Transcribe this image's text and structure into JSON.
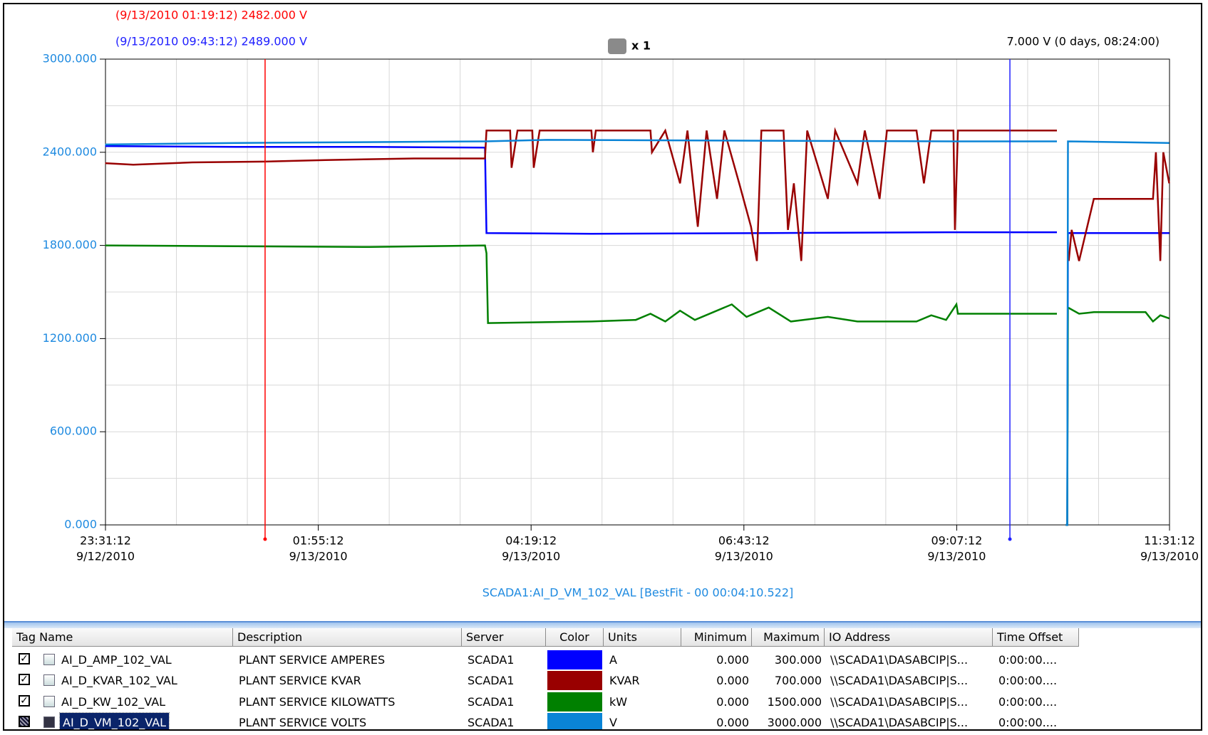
{
  "chart_data": {
    "type": "line",
    "cursors": [
      {
        "x": "2010-09-13T01:19:12",
        "color": "#ff0000",
        "label": "(9/13/2010 01:19:12) 2482.000 V"
      },
      {
        "x": "2010-09-13T09:43:12",
        "color": "#2020ff",
        "label": "(9/13/2010 09:43:12) 2489.000 V"
      }
    ],
    "cursor_delta": "7.000 V (0 days, 08:24:00)",
    "zoom_label": "x 1",
    "footer": "SCADA1:AI_D_VM_102_VAL [BestFit - 00 00:04:10.522]",
    "xlim": [
      "2010-09-12T23:31:12",
      "2010-09-13T11:31:12"
    ],
    "xticks": [
      {
        "value": "2010-09-12T23:31:12",
        "label": [
          "23:31:12",
          "9/12/2010"
        ]
      },
      {
        "value": "2010-09-13T01:55:12",
        "label": [
          "01:55:12",
          "9/13/2010"
        ]
      },
      {
        "value": "2010-09-13T04:19:12",
        "label": [
          "04:19:12",
          "9/13/2010"
        ]
      },
      {
        "value": "2010-09-13T06:43:12",
        "label": [
          "06:43:12",
          "9/13/2010"
        ]
      },
      {
        "value": "2010-09-13T09:07:12",
        "label": [
          "09:07:12",
          "9/13/2010"
        ]
      },
      {
        "value": "2010-09-13T11:31:12",
        "label": [
          "11:31:12",
          "9/13/2010"
        ]
      }
    ],
    "minor_xticks": [
      "2010-09-13T00:19:12",
      "2010-09-13T01:07:12",
      "2010-09-13T02:43:12",
      "2010-09-13T03:31:12",
      "2010-09-13T05:07:12",
      "2010-09-13T05:55:12",
      "2010-09-13T07:31:12",
      "2010-09-13T08:19:12",
      "2010-09-13T09:55:12",
      "2010-09-13T10:43:12"
    ],
    "ylim": [
      0,
      3000
    ],
    "yticks": [
      {
        "value": 0,
        "label": "0.000"
      },
      {
        "value": 600,
        "label": "600.000"
      },
      {
        "value": 1200,
        "label": "1200.000"
      },
      {
        "value": 1800,
        "label": "1800.000"
      },
      {
        "value": 2400,
        "label": "2400.000"
      },
      {
        "value": 3000,
        "label": "3000.000"
      }
    ],
    "minor_yticks": [
      300,
      900,
      1500,
      2100,
      2700
    ],
    "grid": true,
    "series": [
      {
        "color": "#0000ff",
        "x": [
          "2010-09-12T23:31:00",
          "2010-09-13T01:00:00",
          "2010-09-13T02:30:00",
          "2010-09-13T03:48:00",
          "2010-09-13T03:49:00",
          "2010-09-13T05:00:00",
          "2010-09-13T07:00:00",
          "2010-09-13T09:00:00",
          "2010-09-13T10:15:00",
          "2010-09-13T10:18:00",
          "2010-09-13T10:21:00",
          "2010-09-13T10:22:00",
          "2010-09-13T10:22:30",
          "2010-09-13T11:31:00"
        ],
        "values": [
          2440,
          2435,
          2435,
          2430,
          1880,
          1875,
          1880,
          1885,
          1885,
          null,
          0,
          0,
          1880,
          1880
        ]
      },
      {
        "color": "#990000",
        "x": [
          "2010-09-12T23:31:00",
          "2010-09-12T23:50:00",
          "2010-09-13T00:30:00",
          "2010-09-13T01:19:00",
          "2010-09-13T02:00:00",
          "2010-09-13T03:00:00",
          "2010-09-13T03:48:00",
          "2010-09-13T03:49:00",
          "2010-09-13T04:05:00",
          "2010-09-13T04:06:00",
          "2010-09-13T04:10:00",
          "2010-09-13T04:20:00",
          "2010-09-13T04:21:00",
          "2010-09-13T04:25:00",
          "2010-09-13T05:00:00",
          "2010-09-13T05:01:00",
          "2010-09-13T05:03:00",
          "2010-09-13T05:40:00",
          "2010-09-13T05:41:00",
          "2010-09-13T05:50:00",
          "2010-09-13T06:00:00",
          "2010-09-13T06:05:00",
          "2010-09-13T06:12:00",
          "2010-09-13T06:18:00",
          "2010-09-13T06:25:00",
          "2010-09-13T06:30:00",
          "2010-09-13T06:40:00",
          "2010-09-13T06:48:00",
          "2010-09-13T06:52:00",
          "2010-09-13T06:55:00",
          "2010-09-13T07:10:00",
          "2010-09-13T07:13:00",
          "2010-09-13T07:17:00",
          "2010-09-13T07:22:00",
          "2010-09-13T07:26:00",
          "2010-09-13T07:40:00",
          "2010-09-13T07:45:00",
          "2010-09-13T08:00:00",
          "2010-09-13T08:05:00",
          "2010-09-13T08:15:00",
          "2010-09-13T08:20:00",
          "2010-09-13T08:40:00",
          "2010-09-13T08:45:00",
          "2010-09-13T08:50:00",
          "2010-09-13T09:05:00",
          "2010-09-13T09:06:00",
          "2010-09-13T09:08:00",
          "2010-09-13T10:15:00",
          "2010-09-13T10:18:00",
          "2010-09-13T10:23:00",
          "2010-09-13T10:25:00",
          "2010-09-13T10:30:00",
          "2010-09-13T10:40:00",
          "2010-09-13T11:20:00",
          "2010-09-13T11:22:00",
          "2010-09-13T11:25:00",
          "2010-09-13T11:27:00",
          "2010-09-13T11:31:00"
        ],
        "values": [
          2330,
          2320,
          2335,
          2340,
          2350,
          2360,
          2360,
          2540,
          2540,
          2300,
          2540,
          2540,
          2300,
          2540,
          2540,
          2400,
          2540,
          2540,
          2400,
          2540,
          2200,
          2540,
          1920,
          2540,
          2100,
          2540,
          2200,
          1920,
          1700,
          2540,
          2540,
          1900,
          2200,
          1700,
          2540,
          2100,
          2540,
          2200,
          2540,
          2100,
          2540,
          2540,
          2200,
          2540,
          2540,
          1900,
          2540,
          2540,
          null,
          1700,
          1900,
          1700,
          2100,
          2100,
          2400,
          1700,
          2400,
          2200
        ]
      },
      {
        "color": "#008000",
        "x": [
          "2010-09-12T23:31:00",
          "2010-09-13T01:00:00",
          "2010-09-13T02:30:00",
          "2010-09-13T03:48:00",
          "2010-09-13T03:49:00",
          "2010-09-13T03:50:00",
          "2010-09-13T05:00:00",
          "2010-09-13T05:30:00",
          "2010-09-13T05:40:00",
          "2010-09-13T05:50:00",
          "2010-09-13T06:00:00",
          "2010-09-13T06:10:00",
          "2010-09-13T06:35:00",
          "2010-09-13T06:45:00",
          "2010-09-13T07:00:00",
          "2010-09-13T07:15:00",
          "2010-09-13T07:40:00",
          "2010-09-13T08:00:00",
          "2010-09-13T08:40:00",
          "2010-09-13T08:50:00",
          "2010-09-13T09:00:00",
          "2010-09-13T09:07:00",
          "2010-09-13T09:08:00",
          "2010-09-13T10:15:00",
          "2010-09-13T10:18:00",
          "2010-09-13T10:21:00",
          "2010-09-13T10:22:00",
          "2010-09-13T10:22:30",
          "2010-09-13T10:30:00",
          "2010-09-13T10:40:00",
          "2010-09-13T11:15:00",
          "2010-09-13T11:20:00",
          "2010-09-13T11:25:00",
          "2010-09-13T11:31:00"
        ],
        "values": [
          1800,
          1795,
          1790,
          1800,
          1750,
          1300,
          1310,
          1320,
          1360,
          1310,
          1380,
          1320,
          1420,
          1340,
          1400,
          1310,
          1340,
          1310,
          1310,
          1350,
          1320,
          1420,
          1360,
          1360,
          null,
          0,
          0,
          1400,
          1360,
          1370,
          1370,
          1310,
          1350,
          1330
        ]
      },
      {
        "color": "#0a84d6",
        "x": [
          "2010-09-12T23:31:00",
          "2010-09-13T01:00:00",
          "2010-09-13T03:48:00",
          "2010-09-13T04:30:00",
          "2010-09-13T06:43:00",
          "2010-09-13T09:07:00",
          "2010-09-13T10:15:00",
          "2010-09-13T10:18:00",
          "2010-09-13T10:21:00",
          "2010-09-13T10:22:00",
          "2010-09-13T10:22:30",
          "2010-09-13T11:31:00"
        ],
        "values": [
          2450,
          2460,
          2470,
          2480,
          2475,
          2470,
          2470,
          null,
          0,
          0,
          2470,
          2460
        ]
      }
    ]
  },
  "table": {
    "columns": [
      "Tag Name",
      "Description",
      "Server",
      "Color",
      "Units",
      "Minimum",
      "Maximum",
      "IO Address",
      "Time Offset"
    ],
    "selected_row": 3,
    "rows": [
      [
        "AI_D_AMP_102_VAL",
        "PLANT SERVICE AMPERES",
        "SCADA1",
        "",
        "A",
        "0.000",
        "300.000",
        "\\\\SCADA1\\DASABCIP|S...",
        "0:00:00...."
      ],
      [
        "AI_D_KVAR_102_VAL",
        "PLANT SERVICE KVAR",
        "SCADA1",
        "",
        "KVAR",
        "0.000",
        "700.000",
        "\\\\SCADA1\\DASABCIP|S...",
        "0:00:00...."
      ],
      [
        "AI_D_KW_102_VAL",
        "PLANT SERVICE KILOWATTS",
        "SCADA1",
        "",
        "kW",
        "0.000",
        "1500.000",
        "\\\\SCADA1\\DASABCIP|S...",
        "0:00:00...."
      ],
      [
        "AI_D_VM_102_VAL",
        "PLANT SERVICE VOLTS",
        "SCADA1",
        "",
        "V",
        "0.000",
        "3000.000",
        "\\\\SCADA1\\DASABCIP|S...",
        "0:00:00...."
      ]
    ]
  }
}
